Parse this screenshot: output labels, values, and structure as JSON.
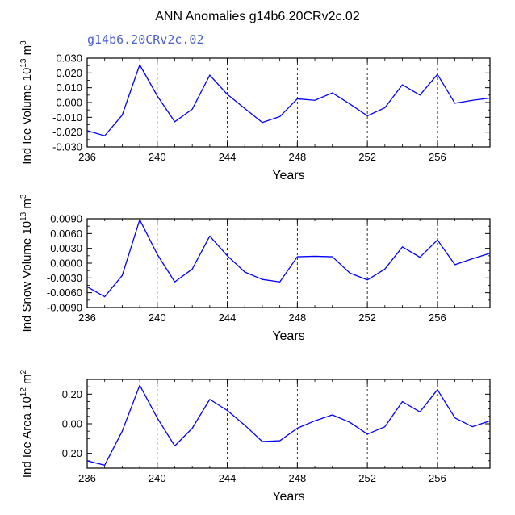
{
  "title": "ANN Anomalies g14b6.20CRv2c.02",
  "legend_label": "g14b6.20CRv2c.02",
  "colors": {
    "line": "#0000ff",
    "axis": "#000000",
    "grid": "#000000",
    "legend": "#4a5fd0"
  },
  "chart_data": [
    {
      "type": "line",
      "ylabel_main": "Ind Ice Volume 10",
      "ylabel_exp": "13",
      "ylabel_unit": " m",
      "ylabel_unit_exp": "3",
      "xlabel": "Years",
      "xlim": [
        236,
        259
      ],
      "ylim": [
        -0.03,
        0.03
      ],
      "xticks": [
        236,
        240,
        244,
        248,
        252,
        256
      ],
      "yticks": [
        -0.03,
        -0.02,
        -0.01,
        0.0,
        0.01,
        0.02,
        0.03
      ],
      "ytick_labels": [
        "-0.030",
        "-0.020",
        "-0.010",
        "0.000",
        "0.010",
        "0.020",
        "0.030"
      ],
      "yminor": [
        -0.025,
        -0.015,
        -0.005,
        0.005,
        0.015,
        0.025
      ],
      "gridlines_x": [
        240,
        244,
        248,
        252,
        256
      ],
      "x": [
        236,
        237,
        238,
        239,
        240,
        241,
        242,
        243,
        244,
        245,
        246,
        247,
        248,
        249,
        250,
        251,
        252,
        253,
        254,
        255,
        256,
        257,
        258,
        259
      ],
      "values": [
        -0.019,
        -0.0225,
        -0.0085,
        0.0255,
        0.0045,
        -0.013,
        -0.0045,
        0.0185,
        0.0055,
        -0.004,
        -0.0135,
        -0.0095,
        0.0025,
        0.0015,
        0.0065,
        -0.001,
        -0.009,
        -0.0035,
        0.012,
        0.005,
        0.019,
        -0.0005,
        0.0015,
        0.003
      ]
    },
    {
      "type": "line",
      "ylabel_main": "Ind Snow Volume 10",
      "ylabel_exp": "13",
      "ylabel_unit": " m",
      "ylabel_unit_exp": "3",
      "xlabel": "Years",
      "xlim": [
        236,
        259
      ],
      "ylim": [
        -0.009,
        0.009
      ],
      "xticks": [
        236,
        240,
        244,
        248,
        252,
        256
      ],
      "yticks": [
        -0.009,
        -0.006,
        -0.003,
        0.0,
        0.003,
        0.006,
        0.009
      ],
      "ytick_labels": [
        "-0.0090",
        "-0.0060",
        "-0.0030",
        "0.0000",
        "0.0030",
        "0.0060",
        "0.0090"
      ],
      "yminor": [
        -0.0075,
        -0.0045,
        -0.0015,
        0.0015,
        0.0045,
        0.0075
      ],
      "gridlines_x": [
        240,
        244,
        248,
        252,
        256
      ],
      "x": [
        236,
        237,
        238,
        239,
        240,
        241,
        242,
        243,
        244,
        245,
        246,
        247,
        248,
        249,
        250,
        251,
        252,
        253,
        254,
        255,
        256,
        257,
        258,
        259
      ],
      "values": [
        -0.0048,
        -0.0068,
        -0.0025,
        0.0088,
        0.0018,
        -0.0038,
        -0.0012,
        0.0055,
        0.0015,
        -0.0018,
        -0.0033,
        -0.0038,
        0.0013,
        0.0014,
        0.0013,
        -0.002,
        -0.0034,
        -0.0012,
        0.0033,
        0.0012,
        0.0047,
        -0.0003,
        0.0009,
        0.002
      ]
    },
    {
      "type": "line",
      "ylabel_main": "Ind Ice Area 10",
      "ylabel_exp": "12",
      "ylabel_unit": " m",
      "ylabel_unit_exp": "2",
      "xlabel": "Years",
      "xlim": [
        236,
        259
      ],
      "ylim": [
        -0.3,
        0.3
      ],
      "xticks": [
        236,
        240,
        244,
        248,
        252,
        256
      ],
      "yticks": [
        -0.2,
        0.0,
        0.2
      ],
      "ytick_labels": [
        "-0.20",
        "0.00",
        "0.20"
      ],
      "yminor": [
        -0.3,
        -0.25,
        -0.15,
        -0.1,
        -0.05,
        0.05,
        0.1,
        0.15,
        0.25,
        0.3
      ],
      "gridlines_x": [
        240,
        244,
        248,
        252,
        256
      ],
      "x": [
        236,
        237,
        238,
        239,
        240,
        241,
        242,
        243,
        244,
        245,
        246,
        247,
        248,
        249,
        250,
        251,
        252,
        253,
        254,
        255,
        256,
        257,
        258,
        259
      ],
      "values": [
        -0.25,
        -0.28,
        -0.05,
        0.26,
        0.04,
        -0.15,
        -0.03,
        0.165,
        0.09,
        -0.01,
        -0.12,
        -0.115,
        -0.03,
        0.02,
        0.06,
        0.01,
        -0.07,
        -0.02,
        0.15,
        0.08,
        0.23,
        0.04,
        -0.02,
        0.02
      ]
    }
  ]
}
